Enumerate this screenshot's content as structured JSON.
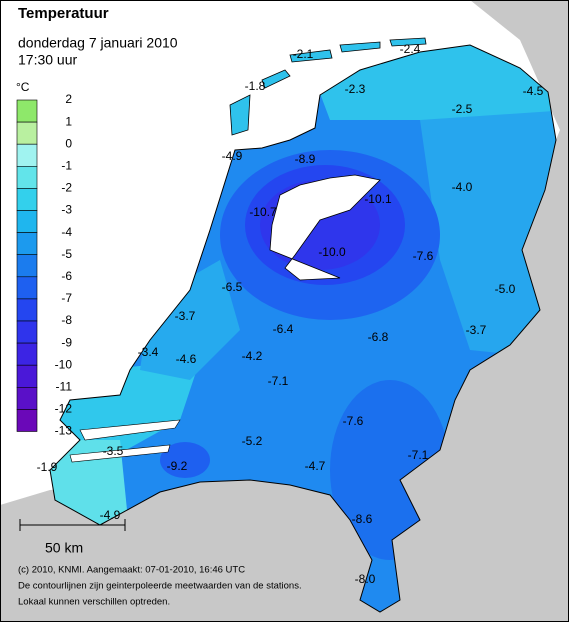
{
  "header": {
    "title": "Temperatuur",
    "date": "donderdag 7 januari 2010",
    "time": "17:30 uur"
  },
  "legend": {
    "unit": "°C",
    "labels": [
      2,
      1,
      0,
      -1,
      -2,
      -3,
      -4,
      -5,
      -6,
      -7,
      -8,
      -9,
      -10,
      -11,
      -12,
      -13
    ],
    "colors": [
      "#8ee86a",
      "#b9f0a0",
      "#a0f3f0",
      "#62e4ea",
      "#33d0ec",
      "#1fb6ee",
      "#1c9aee",
      "#1b7cee",
      "#1e60f0",
      "#2446f0",
      "#2f34ec",
      "#3c24e4",
      "#4a18d8",
      "#5a10c8",
      "#6a08b8"
    ]
  },
  "stations": [
    "-2.1",
    "-2.4",
    "-1.8",
    "-2.3",
    "-4.5",
    "-2.5",
    "-4.9",
    "-8.9",
    "-4.0",
    "-10.1",
    "-10.7",
    "-7.6",
    "-10.0",
    "-5.0",
    "-6.5",
    "-3.7",
    "-6.4",
    "-3.7",
    "-6.8",
    "-3.4",
    "-4.6",
    "-4.2",
    "-7.1",
    "-7.6",
    "-3.5",
    "-5.2",
    "-7.1",
    "-9.2",
    "-1.9",
    "-4.7",
    "-4.9",
    "-8.6",
    "-8.0"
  ],
  "scale_bar": "50 km",
  "footer": [
    "(c) 2010, KNMI. Aangemaakt: 07-01-2010, 16:46 UTC",
    "De contourlijnen zijn geinterpoleerde meetwaarden van de stations.",
    "Lokaal kunnen verschillen optreden."
  ]
}
